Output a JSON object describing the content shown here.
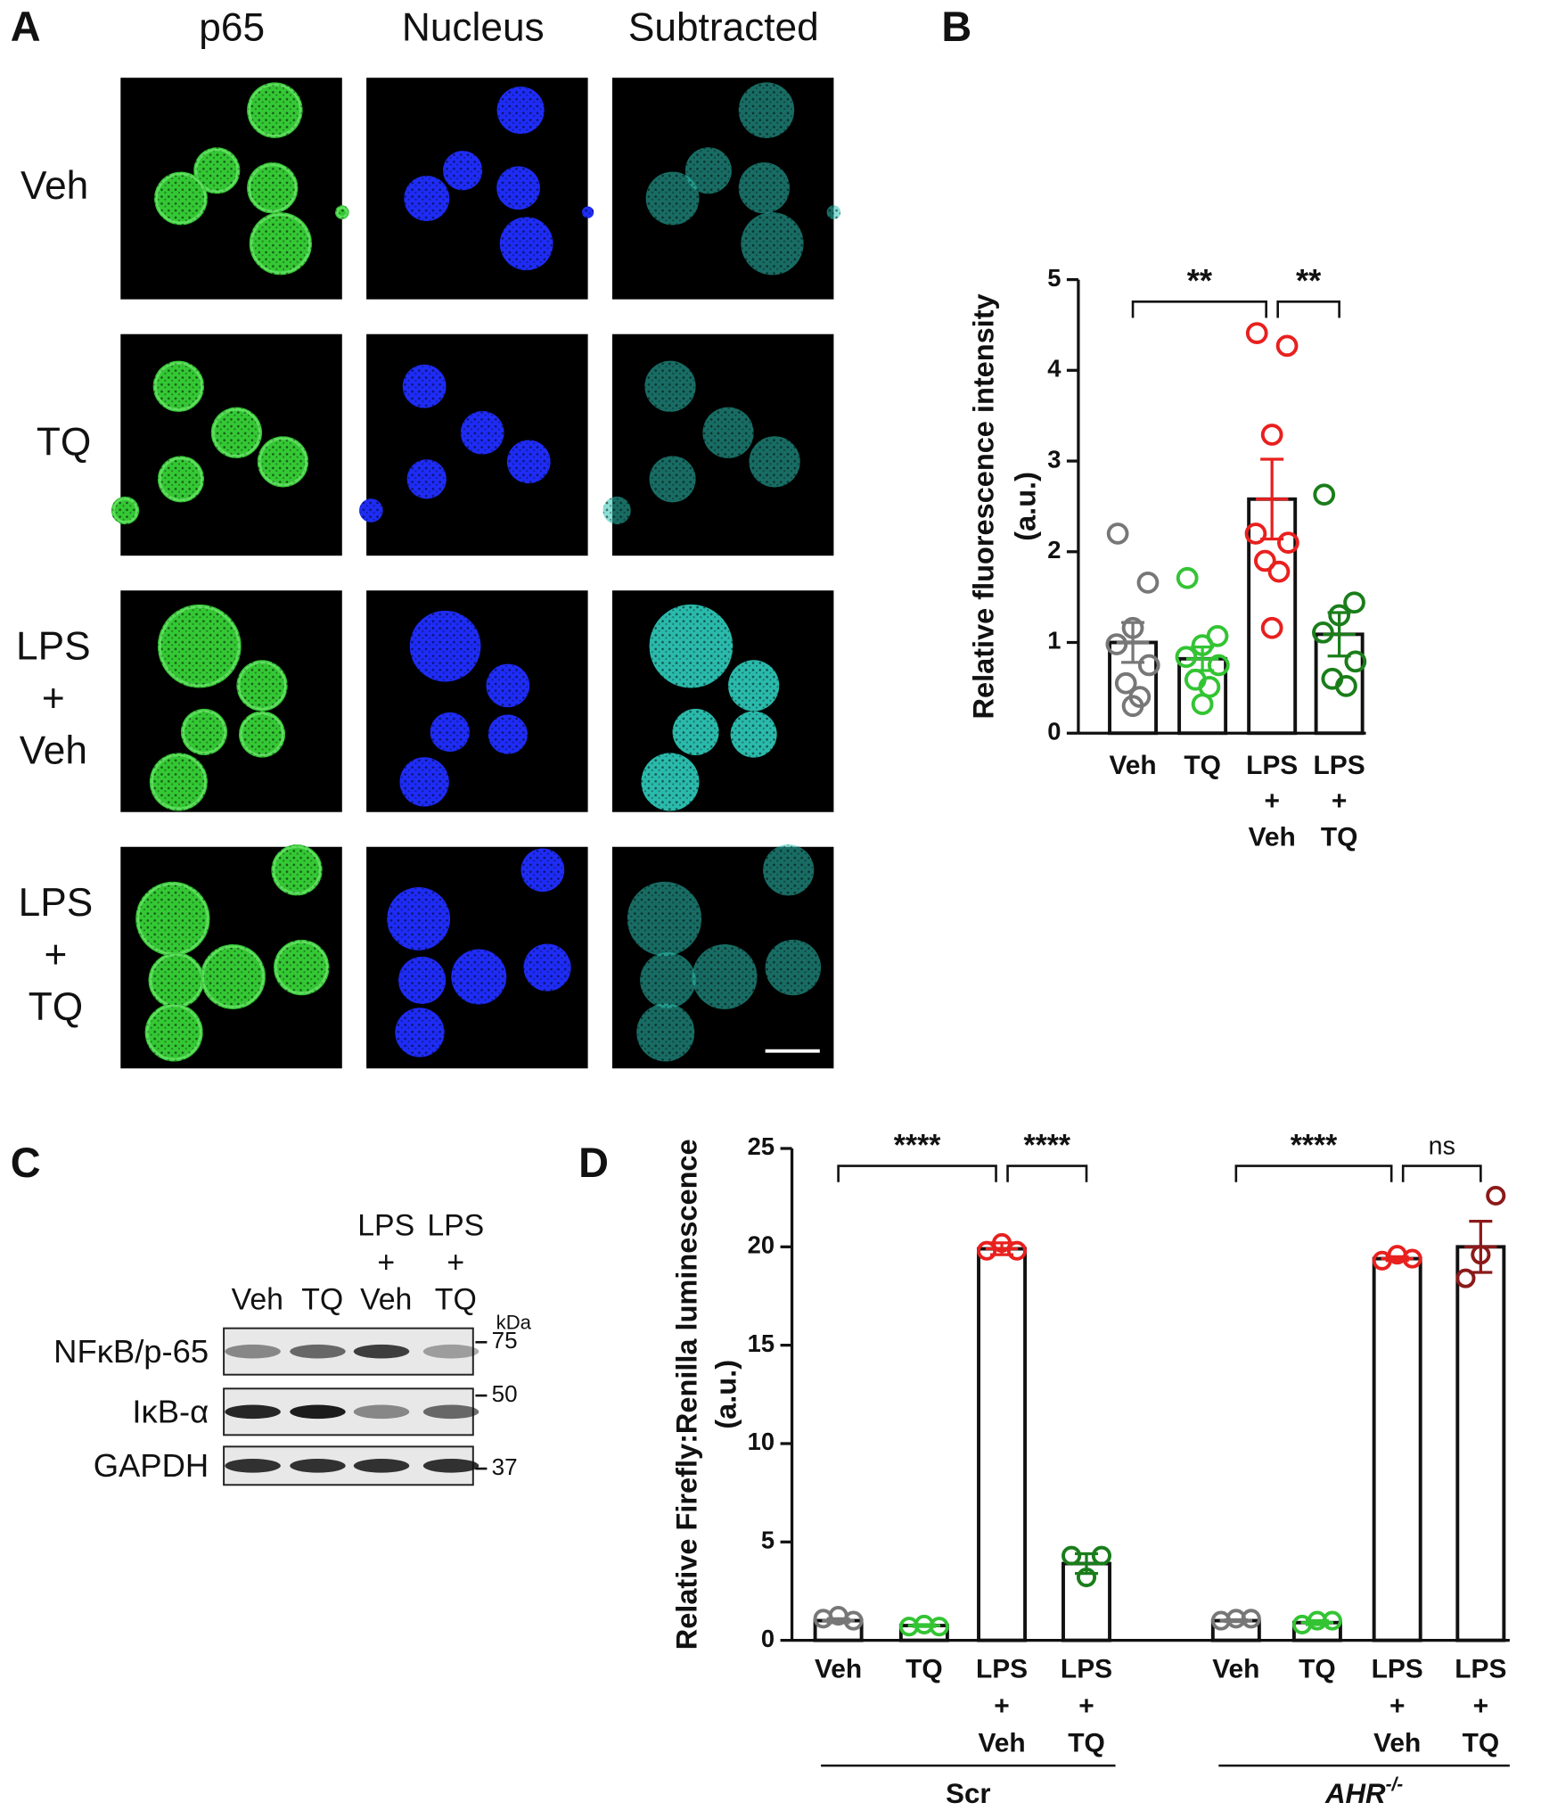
{
  "figure_a": {
    "panel": "A",
    "columns": [
      "p65",
      "Nucleus",
      "Subtracted"
    ],
    "rows": [
      [
        "Veh"
      ],
      [
        "TQ"
      ],
      [
        "LPS",
        "+",
        "Veh"
      ],
      [
        "LPS",
        "+",
        "TQ"
      ]
    ]
  },
  "figure_c": {
    "panel": "C",
    "lanes": [
      [
        "Veh"
      ],
      [
        "TQ"
      ],
      [
        "LPS",
        "+",
        "Veh"
      ],
      [
        "LPS",
        "+",
        "TQ"
      ]
    ],
    "blots": [
      "NFκB/p-65",
      "IκB-α",
      "GAPDH"
    ],
    "unit": "kDa",
    "markers": [
      "75",
      "50",
      "37"
    ]
  },
  "chart_data": [
    {
      "type": "bar",
      "panel": "B",
      "ylabel": [
        "Relative fluorescence intensity",
        "(a.u.)"
      ],
      "categories": [
        [
          "Veh"
        ],
        [
          "TQ"
        ],
        [
          "LPS",
          "+",
          "Veh"
        ],
        [
          "LPS",
          "+",
          "TQ"
        ]
      ],
      "values": [
        1.0,
        0.82,
        2.58,
        1.09
      ],
      "errors": [
        0.22,
        0.13,
        0.44,
        0.24
      ],
      "points": [
        [
          2.2,
          1.66,
          1.16,
          0.98,
          0.75,
          0.55,
          0.4,
          0.3
        ],
        [
          1.71,
          1.07,
          0.97,
          0.84,
          0.75,
          0.59,
          0.51,
          0.32
        ],
        [
          4.41,
          4.27,
          3.29,
          2.2,
          2.1,
          1.9,
          1.78,
          1.16
        ],
        [
          2.63,
          1.44,
          1.3,
          1.11,
          0.79,
          0.6,
          0.52
        ]
      ],
      "colors": [
        "#777777",
        "#33c433",
        "#e8201e",
        "#1a7d1a"
      ],
      "ylim": [
        0,
        5
      ],
      "yticks": [
        0,
        1,
        2,
        3,
        4,
        5
      ],
      "significance": [
        {
          "from": 0,
          "to": 2,
          "label": "**"
        },
        {
          "from": 2,
          "to": 3,
          "label": "**"
        }
      ]
    },
    {
      "type": "bar",
      "panel": "D",
      "ylabel": [
        "Relative Firefly:Renilla luminescence",
        "(a.u.)"
      ],
      "categories": [
        [
          "Veh"
        ],
        [
          "TQ"
        ],
        [
          "LPS",
          "+",
          "Veh"
        ],
        [
          "LPS",
          "+",
          "TQ"
        ],
        [
          "Veh"
        ],
        [
          "TQ"
        ],
        [
          "LPS",
          "+",
          "Veh"
        ],
        [
          "LPS",
          "+",
          "TQ"
        ]
      ],
      "values": [
        1.0,
        0.75,
        19.9,
        3.9,
        1.0,
        0.9,
        19.4,
        20.0
      ],
      "errors": [
        0.1,
        0.05,
        0.3,
        0.5,
        0.05,
        0.1,
        0.1,
        1.3
      ],
      "points": [
        [
          1.1,
          1.25,
          1.0
        ],
        [
          0.7,
          0.8,
          0.7
        ],
        [
          19.8,
          20.2,
          19.8
        ],
        [
          4.3,
          3.2,
          4.3
        ],
        [
          1.0,
          1.1,
          1.1
        ],
        [
          0.8,
          1.0,
          1.0
        ],
        [
          19.3,
          19.6,
          19.4
        ],
        [
          18.4,
          19.6,
          22.6
        ]
      ],
      "colors": [
        "#777777",
        "#33c433",
        "#e8201e",
        "#1a7d1a",
        "#777777",
        "#33c433",
        "#e8201e",
        "#8b1a1a"
      ],
      "ylim": [
        0,
        25
      ],
      "yticks": [
        0,
        5,
        10,
        15,
        20,
        25
      ],
      "significance": [
        {
          "from": 0,
          "to": 2,
          "label": "****"
        },
        {
          "from": 2,
          "to": 3,
          "label": "****"
        },
        {
          "from": 4,
          "to": 6,
          "label": "****"
        },
        {
          "from": 6,
          "to": 7,
          "label": "ns"
        }
      ],
      "groups": [
        {
          "label": "Scr",
          "from": 0,
          "to": 3
        },
        {
          "label": "AHR",
          "superscript": "-/-",
          "from": 4,
          "to": 7
        }
      ]
    }
  ]
}
